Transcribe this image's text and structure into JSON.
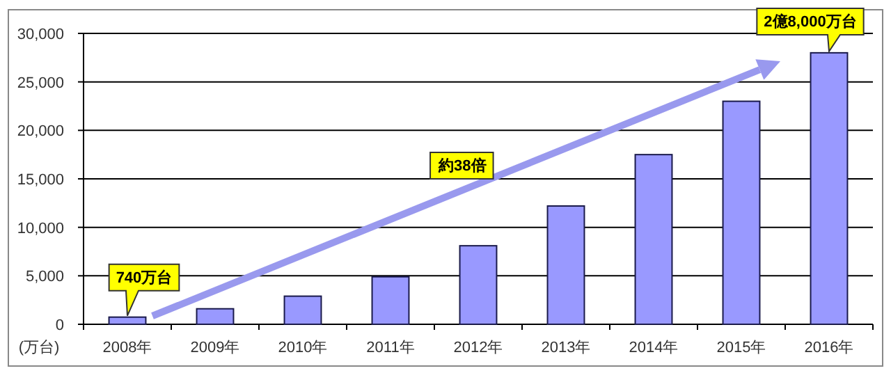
{
  "chart_data": {
    "type": "bar",
    "ylabel": "(万台)",
    "categories": [
      "2008年",
      "2009年",
      "2010年",
      "2011年",
      "2012年",
      "2013年",
      "2014年",
      "2015年",
      "2016年"
    ],
    "values": [
      740,
      1600,
      2900,
      4900,
      8100,
      12200,
      17500,
      23000,
      28000
    ],
    "color": "#9999ff",
    "ylim": [
      0,
      30000
    ],
    "yticks": [
      {
        "value": 0,
        "label": "0"
      },
      {
        "value": 5000,
        "label": "5,000"
      },
      {
        "value": 10000,
        "label": "10,000"
      },
      {
        "value": 15000,
        "label": "15,000"
      },
      {
        "value": 20000,
        "label": "20,000"
      },
      {
        "value": 25000,
        "label": "25,000"
      },
      {
        "value": 30000,
        "label": "30,000"
      }
    ],
    "grid": "y",
    "annotations": [
      {
        "text": "740万台",
        "x": "2008年",
        "y": 740
      },
      "約38倍",
      {
        "text": "2億8,000万台",
        "x": "2016年",
        "y": 28000
      }
    ]
  }
}
